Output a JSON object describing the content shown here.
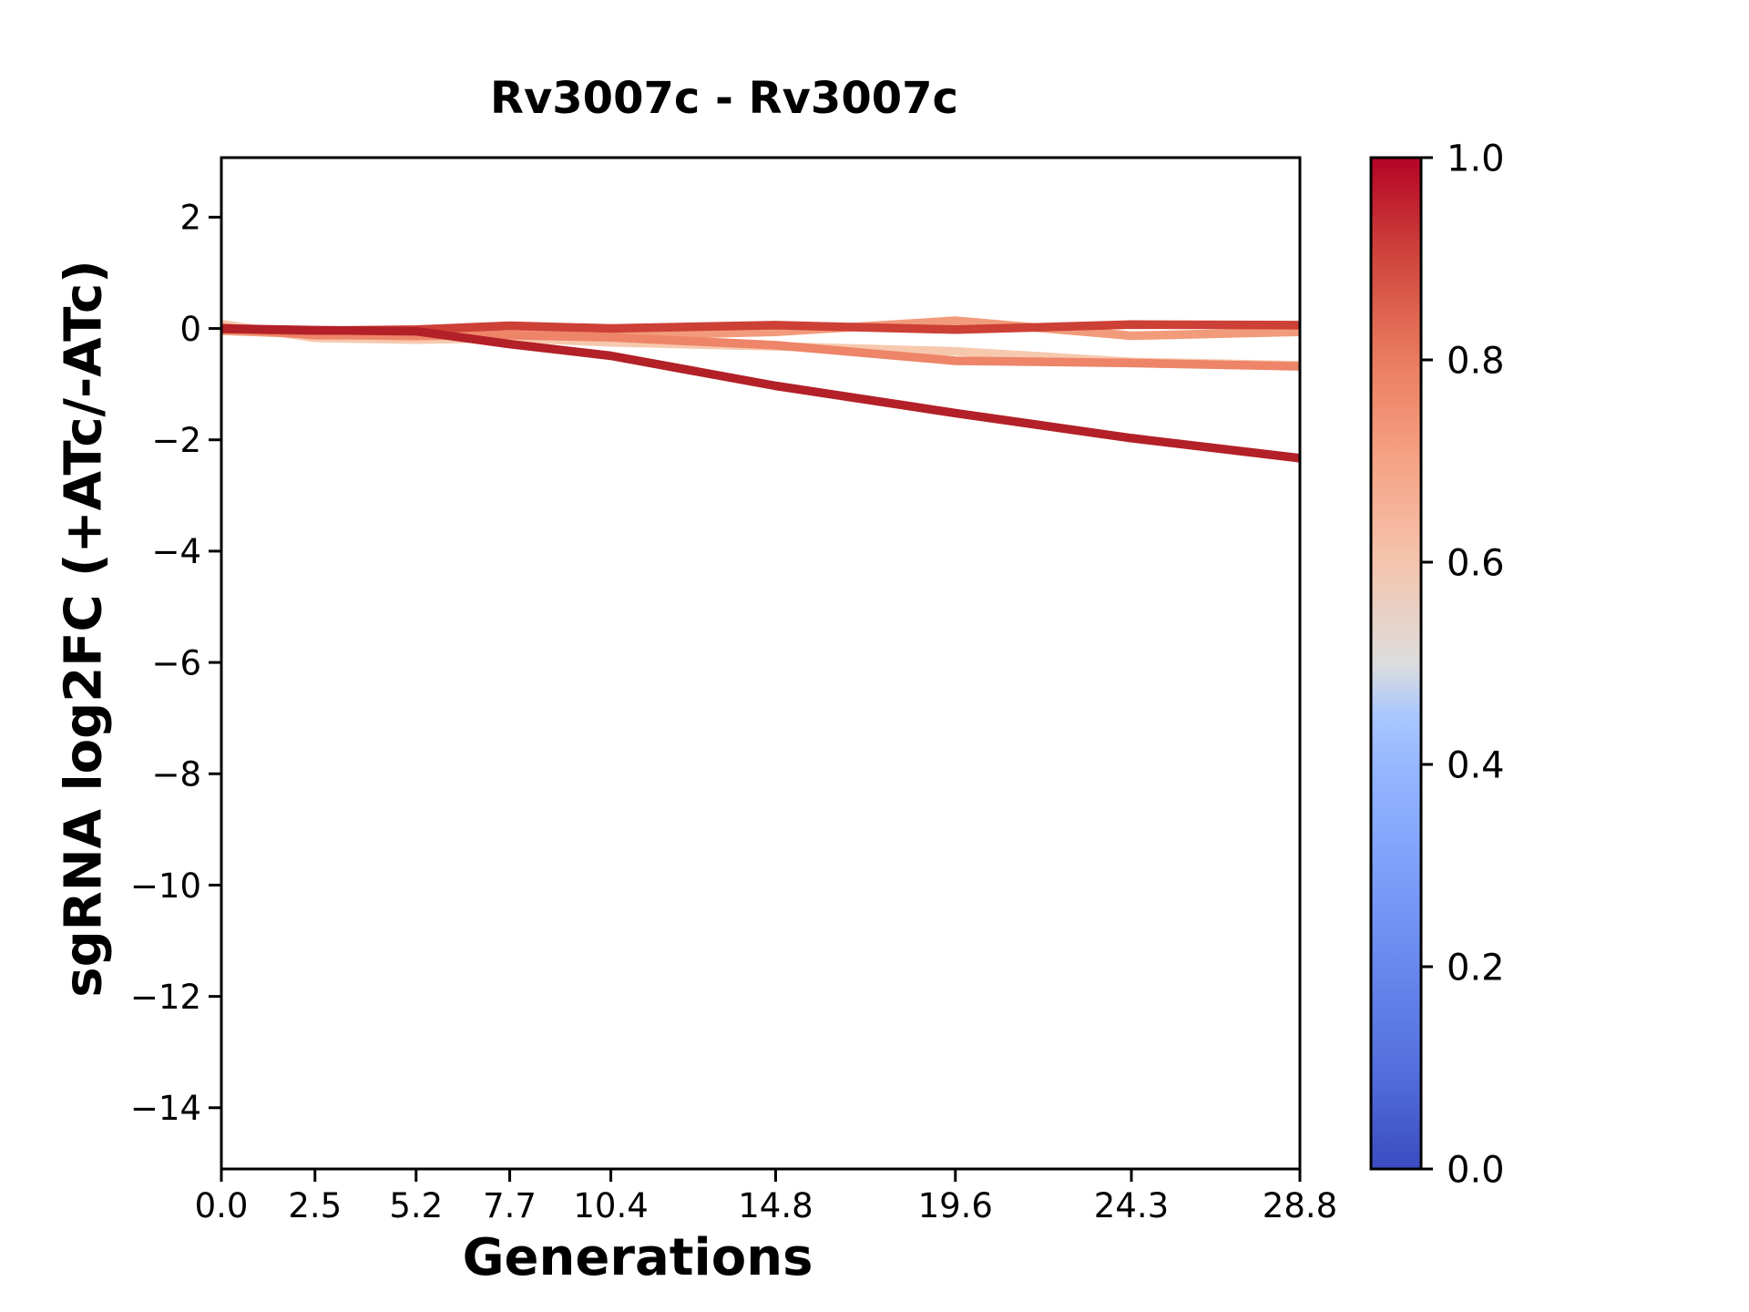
{
  "title": "Rv3007c - Rv3007c",
  "chart_data": {
    "type": "line",
    "title": "Rv3007c - Rv3007c",
    "xlabel": "Generations",
    "ylabel": "sgRNA log2FC (+ATc/-ATc)",
    "grid": false,
    "legend": "none (colorbar only)",
    "x": [
      0.0,
      2.5,
      5.2,
      7.7,
      10.4,
      14.8,
      19.6,
      24.3,
      28.8
    ],
    "x_tick_labels": [
      "0.0",
      "2.5",
      "5.2",
      "7.7",
      "10.4",
      "14.8",
      "19.6",
      "24.3",
      "28.8"
    ],
    "xlim": [
      0,
      28.8
    ],
    "y_ticks": [
      2,
      0,
      -2,
      -4,
      -6,
      -8,
      -10,
      -12,
      -14
    ],
    "y_tick_labels": [
      "2",
      "0",
      "−2",
      "−4",
      "−6",
      "−8",
      "−10",
      "−12",
      "−14"
    ],
    "ylim": [
      -15.1,
      3.07
    ],
    "series": [
      {
        "name": "series-1",
        "color": "#f6c9ae",
        "values": [
          0.08,
          -0.17,
          -0.2,
          -0.17,
          -0.25,
          -0.32,
          -0.41,
          -0.6,
          -0.66
        ]
      },
      {
        "name": "series-2",
        "color": "#f29b7a",
        "values": [
          -0.04,
          -0.1,
          -0.14,
          -0.1,
          -0.13,
          -0.06,
          0.14,
          -0.13,
          -0.06
        ]
      },
      {
        "name": "series-3",
        "color": "#ee8468",
        "values": [
          0.02,
          -0.12,
          -0.12,
          -0.12,
          -0.16,
          -0.3,
          -0.58,
          -0.62,
          -0.68
        ]
      },
      {
        "name": "series-4",
        "color": "#cd4036",
        "values": [
          -0.01,
          -0.04,
          -0.02,
          0.05,
          0.0,
          0.06,
          -0.02,
          0.07,
          0.06
        ]
      },
      {
        "name": "series-5",
        "color": "#b32028",
        "values": [
          0.0,
          -0.03,
          -0.05,
          -0.28,
          -0.49,
          -1.03,
          -1.52,
          -1.97,
          -2.33
        ]
      }
    ],
    "colorbar": {
      "colormap": "coolwarm",
      "tick_labels": [
        "0.0",
        "0.2",
        "0.4",
        "0.6",
        "0.8",
        "1.0"
      ],
      "tick_values": [
        0.0,
        0.2,
        0.4,
        0.6,
        0.8,
        1.0
      ],
      "stops": [
        {
          "offset": 0.0,
          "color": "#3b4cc0"
        },
        {
          "offset": 0.1,
          "color": "#5470de"
        },
        {
          "offset": 0.2,
          "color": "#6788ee"
        },
        {
          "offset": 0.3,
          "color": "#7ea1fa"
        },
        {
          "offset": 0.4,
          "color": "#96b7ff"
        },
        {
          "offset": 0.45,
          "color": "#aac7fd"
        },
        {
          "offset": 0.5,
          "color": "#dddddd"
        },
        {
          "offset": 0.6,
          "color": "#f4c4ad"
        },
        {
          "offset": 0.7,
          "color": "#f6a385"
        },
        {
          "offset": 0.8,
          "color": "#ea7b60"
        },
        {
          "offset": 0.9,
          "color": "#d0473d"
        },
        {
          "offset": 1.0,
          "color": "#b40426"
        }
      ]
    }
  }
}
